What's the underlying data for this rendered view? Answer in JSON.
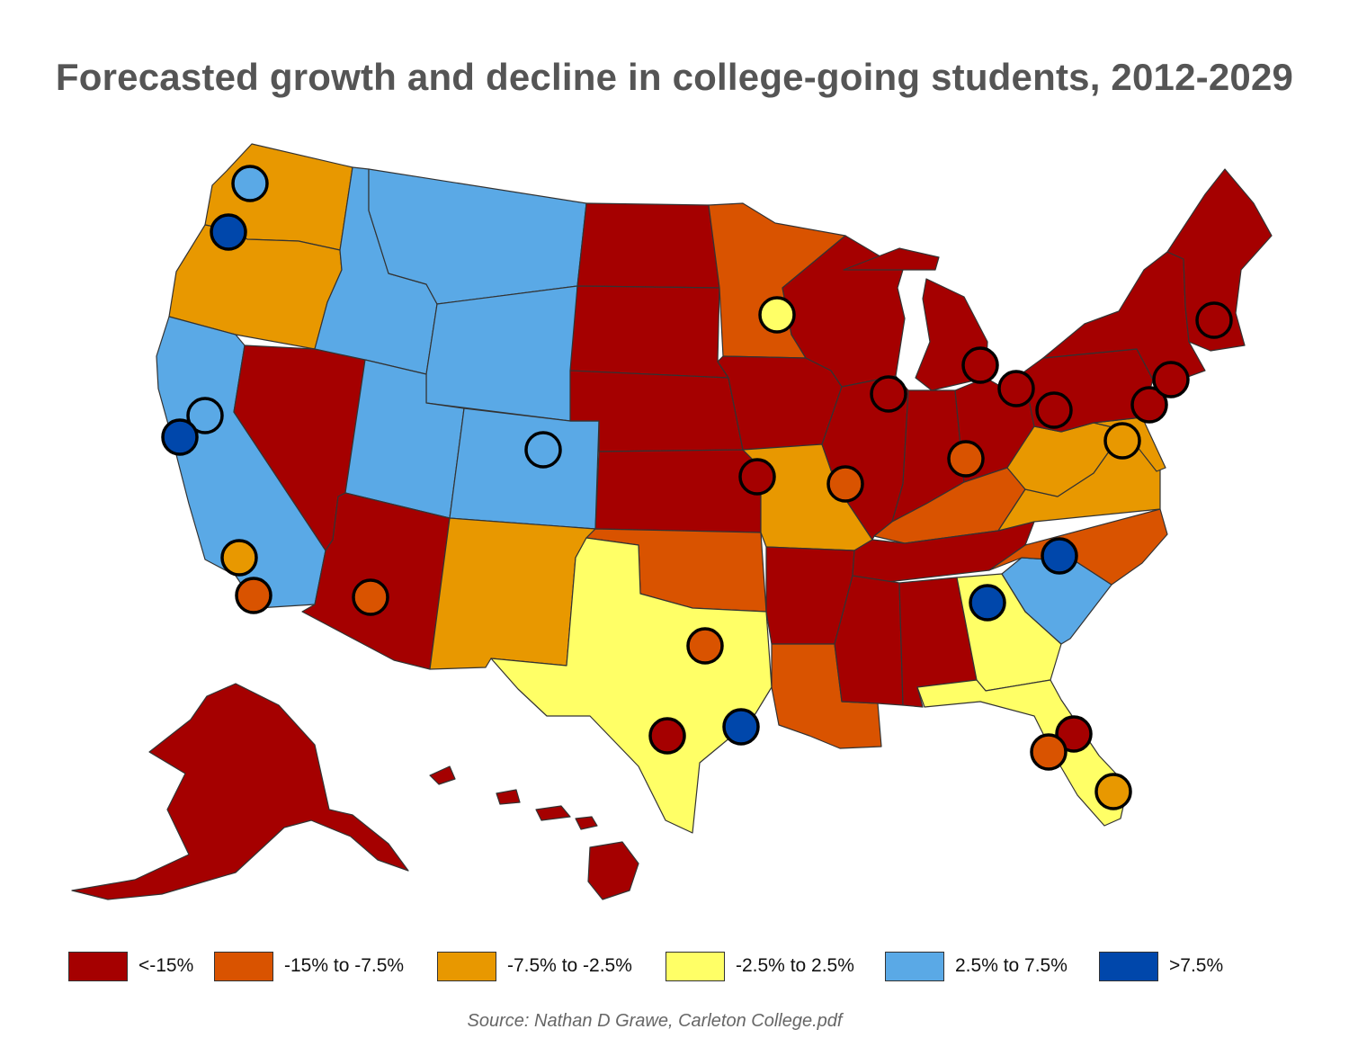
{
  "title": "Forecasted growth and decline in college-going students, 2012-2029",
  "source": "Source: Nathan D Grawe, Carleton College.pdf",
  "legend": [
    {
      "label": "<-15%",
      "color": "#a50000"
    },
    {
      "label": "-15% to -7.5%",
      "color": "#d95300"
    },
    {
      "label": "-7.5% to -2.5%",
      "color": "#e89800"
    },
    {
      "label": "-2.5% to 2.5%",
      "color": "#ffff66"
    },
    {
      "label": "2.5% to 7.5%",
      "color": "#5aa9e6"
    },
    {
      "label": ">7.5%",
      "color": "#0047ab"
    }
  ],
  "states": {
    "Washington": "-7.5% to -2.5%",
    "Oregon": "-7.5% to -2.5%",
    "California": "2.5% to 7.5%",
    "Nevada": "<-15%",
    "Idaho": "2.5% to 7.5%",
    "Montana": "2.5% to 7.5%",
    "Wyoming": "2.5% to 7.5%",
    "Utah": "2.5% to 7.5%",
    "Colorado": "2.5% to 7.5%",
    "Arizona": "<-15%",
    "New Mexico": "-7.5% to -2.5%",
    "North Dakota": "<-15%",
    "South Dakota": "<-15%",
    "Nebraska": "<-15%",
    "Kansas": "<-15%",
    "Oklahoma": "-15% to -7.5%",
    "Texas": "-2.5% to 2.5%",
    "Minnesota": "-15% to -7.5%",
    "Iowa": "<-15%",
    "Missouri": "-7.5% to -2.5%",
    "Arkansas": "<-15%",
    "Louisiana": "-15% to -7.5%",
    "Wisconsin": "<-15%",
    "Illinois": "<-15%",
    "Michigan": "<-15%",
    "Indiana": "<-15%",
    "Ohio": "<-15%",
    "Kentucky": "-15% to -7.5%",
    "Tennessee": "<-15%",
    "Mississippi": "<-15%",
    "Alabama": "<-15%",
    "Georgia": "-2.5% to 2.5%",
    "Florida": "-2.5% to 2.5%",
    "South Carolina": "2.5% to 7.5%",
    "North Carolina": "-15% to -7.5%",
    "Virginia": "-7.5% to -2.5%",
    "West Virginia": "-7.5% to -2.5%",
    "Maryland": "-7.5% to -2.5%",
    "Pennsylvania": "<-15%",
    "New York": "<-15%",
    "New England": "<-15%",
    "Alaska": "<-15%",
    "Hawaii": "<-15%"
  },
  "metro_markers": [
    {
      "metro": "Seattle",
      "category": "2.5% to 7.5%"
    },
    {
      "metro": "Portland",
      "category": ">7.5%"
    },
    {
      "metro": "Sacramento",
      "category": "2.5% to 7.5%"
    },
    {
      "metro": "San Francisco",
      "category": ">7.5%"
    },
    {
      "metro": "Los Angeles",
      "category": "-7.5% to -2.5%"
    },
    {
      "metro": "San Diego",
      "category": "-15% to -7.5%"
    },
    {
      "metro": "Phoenix",
      "category": "-15% to -7.5%"
    },
    {
      "metro": "Denver",
      "category": "2.5% to 7.5%"
    },
    {
      "metro": "Minneapolis",
      "category": "-2.5% to 2.5%"
    },
    {
      "metro": "Kansas City",
      "category": "<-15%"
    },
    {
      "metro": "St. Louis",
      "category": "-15% to -7.5%"
    },
    {
      "metro": "Chicago",
      "category": "<-15%"
    },
    {
      "metro": "Detroit",
      "category": "<-15%"
    },
    {
      "metro": "Cleveland",
      "category": "<-15%"
    },
    {
      "metro": "Pittsburgh",
      "category": "<-15%"
    },
    {
      "metro": "Cincinnati",
      "category": "-15% to -7.5%"
    },
    {
      "metro": "Philadelphia",
      "category": "<-15%"
    },
    {
      "metro": "New York",
      "category": "<-15%"
    },
    {
      "metro": "Boston",
      "category": "<-15%"
    },
    {
      "metro": "Washington DC",
      "category": "-7.5% to -2.5%"
    },
    {
      "metro": "Charlotte",
      "category": ">7.5%"
    },
    {
      "metro": "Atlanta",
      "category": ">7.5%"
    },
    {
      "metro": "Dallas",
      "category": "-15% to -7.5%"
    },
    {
      "metro": "San Antonio",
      "category": "<-15%"
    },
    {
      "metro": "Houston",
      "category": ">7.5%"
    },
    {
      "metro": "Orlando",
      "category": "<-15%"
    },
    {
      "metro": "Tampa",
      "category": "-15% to -7.5%"
    },
    {
      "metro": "Miami",
      "category": "-7.5% to -2.5%"
    }
  ]
}
